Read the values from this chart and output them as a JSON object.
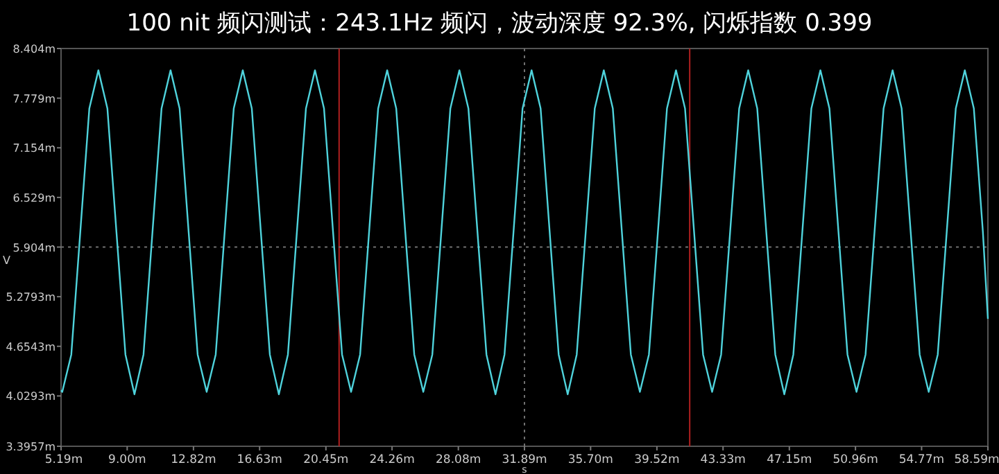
{
  "chart_data": {
    "type": "line",
    "title": "100 nit 频闪测试：243.1Hz 频闪，波动深度 92.3%, 闪烁指数 0.399",
    "xlabel": "s",
    "ylabel": "V",
    "xlim": [
      5.19,
      58.59
    ],
    "ylim": [
      3.3957,
      8.404
    ],
    "xticks": [
      {
        "value": 5.19,
        "label": "5.19m"
      },
      {
        "value": 9.0,
        "label": "9.00m"
      },
      {
        "value": 12.82,
        "label": "12.82m"
      },
      {
        "value": 16.63,
        "label": "16.63m"
      },
      {
        "value": 20.45,
        "label": "20.45m"
      },
      {
        "value": 24.26,
        "label": "24.26m"
      },
      {
        "value": 28.08,
        "label": "28.08m"
      },
      {
        "value": 31.89,
        "label": "31.89m"
      },
      {
        "value": 35.7,
        "label": "35.70m"
      },
      {
        "value": 39.52,
        "label": "39.52m"
      },
      {
        "value": 43.33,
        "label": "43.33m"
      },
      {
        "value": 47.15,
        "label": "47.15m"
      },
      {
        "value": 50.96,
        "label": "50.96m"
      },
      {
        "value": 54.77,
        "label": "54.77m"
      },
      {
        "value": 58.59,
        "label": "58.59m"
      }
    ],
    "yticks": [
      {
        "value": 8.404,
        "label": "8.404m"
      },
      {
        "value": 7.779,
        "label": "7.779m"
      },
      {
        "value": 7.154,
        "label": "7.154m"
      },
      {
        "value": 6.529,
        "label": "6.529m"
      },
      {
        "value": 5.904,
        "label": "5.904m"
      },
      {
        "value": 5.2793,
        "label": "5.2793m"
      },
      {
        "value": 4.6543,
        "label": "4.6543m"
      },
      {
        "value": 4.0293,
        "label": "4.0293m"
      },
      {
        "value": 3.3957,
        "label": "3.3957m"
      }
    ],
    "grid": false,
    "marker": "none",
    "line_style": "solid",
    "ref_lines": [
      {
        "axis": "x",
        "value": 21.21,
        "color": "#b02020",
        "line_style": "solid"
      },
      {
        "axis": "x",
        "value": 41.41,
        "color": "#b02020",
        "line_style": "solid"
      },
      {
        "axis": "x",
        "value": 31.89,
        "color": "#707070",
        "line_style": "dotted"
      },
      {
        "axis": "y",
        "value": 5.904,
        "color": "#707070",
        "line_style": "dotted"
      }
    ],
    "series": [
      {
        "color": "#4fd3dc",
        "x": [
          5.19,
          5.26,
          5.78,
          6.3,
          6.82,
          7.34,
          7.86,
          8.38,
          8.9,
          9.42,
          9.94,
          10.46,
          10.98,
          11.5,
          12.02,
          12.54,
          13.06,
          13.58,
          14.1,
          14.62,
          15.14,
          15.66,
          16.18,
          16.7,
          17.22,
          17.74,
          18.26,
          18.78,
          19.3,
          19.82,
          20.34,
          20.86,
          21.38,
          21.9,
          22.42,
          22.94,
          23.46,
          23.98,
          24.5,
          25.02,
          25.54,
          26.06,
          26.58,
          27.1,
          27.62,
          28.14,
          28.66,
          29.18,
          29.7,
          30.22,
          30.74,
          31.26,
          31.78,
          32.3,
          32.82,
          33.34,
          33.86,
          34.38,
          34.9,
          35.42,
          35.94,
          36.46,
          36.98,
          37.5,
          38.02,
          38.54,
          39.06,
          39.58,
          40.1,
          40.62,
          41.14,
          41.66,
          42.18,
          42.7,
          43.22,
          43.74,
          44.26,
          44.78,
          45.3,
          45.82,
          46.34,
          46.86,
          47.38,
          47.9,
          48.42,
          48.94,
          49.46,
          49.98,
          50.5,
          51.02,
          51.54,
          52.06,
          52.58,
          53.1,
          53.62,
          54.14,
          54.66,
          55.18,
          55.7,
          56.22,
          56.74,
          57.26,
          57.78,
          58.3,
          58.59
        ],
        "values": [
          4.1,
          4.08,
          4.55,
          6.1,
          7.65,
          8.13,
          7.65,
          6.1,
          4.55,
          4.05,
          4.55,
          6.1,
          7.65,
          8.13,
          7.65,
          6.1,
          4.55,
          4.08,
          4.55,
          6.1,
          7.65,
          8.13,
          7.65,
          6.1,
          4.55,
          4.05,
          4.55,
          6.1,
          7.65,
          8.13,
          7.65,
          6.1,
          4.55,
          4.08,
          4.55,
          6.1,
          7.65,
          8.13,
          7.65,
          6.1,
          4.55,
          4.08,
          4.55,
          6.1,
          7.65,
          8.13,
          7.65,
          6.1,
          4.55,
          4.05,
          4.55,
          6.1,
          7.65,
          8.13,
          7.65,
          6.1,
          4.55,
          4.05,
          4.55,
          6.1,
          7.65,
          8.13,
          7.65,
          6.1,
          4.55,
          4.08,
          4.55,
          6.1,
          7.65,
          8.13,
          7.65,
          6.1,
          4.55,
          4.08,
          4.55,
          6.1,
          7.65,
          8.13,
          7.65,
          6.1,
          4.55,
          4.05,
          4.55,
          6.1,
          7.65,
          8.13,
          7.65,
          6.1,
          4.55,
          4.08,
          4.55,
          6.1,
          7.65,
          8.13,
          7.65,
          6.1,
          4.55,
          4.08,
          4.55,
          6.1,
          7.65,
          8.13,
          7.65,
          6.1,
          5.0
        ]
      }
    ]
  }
}
